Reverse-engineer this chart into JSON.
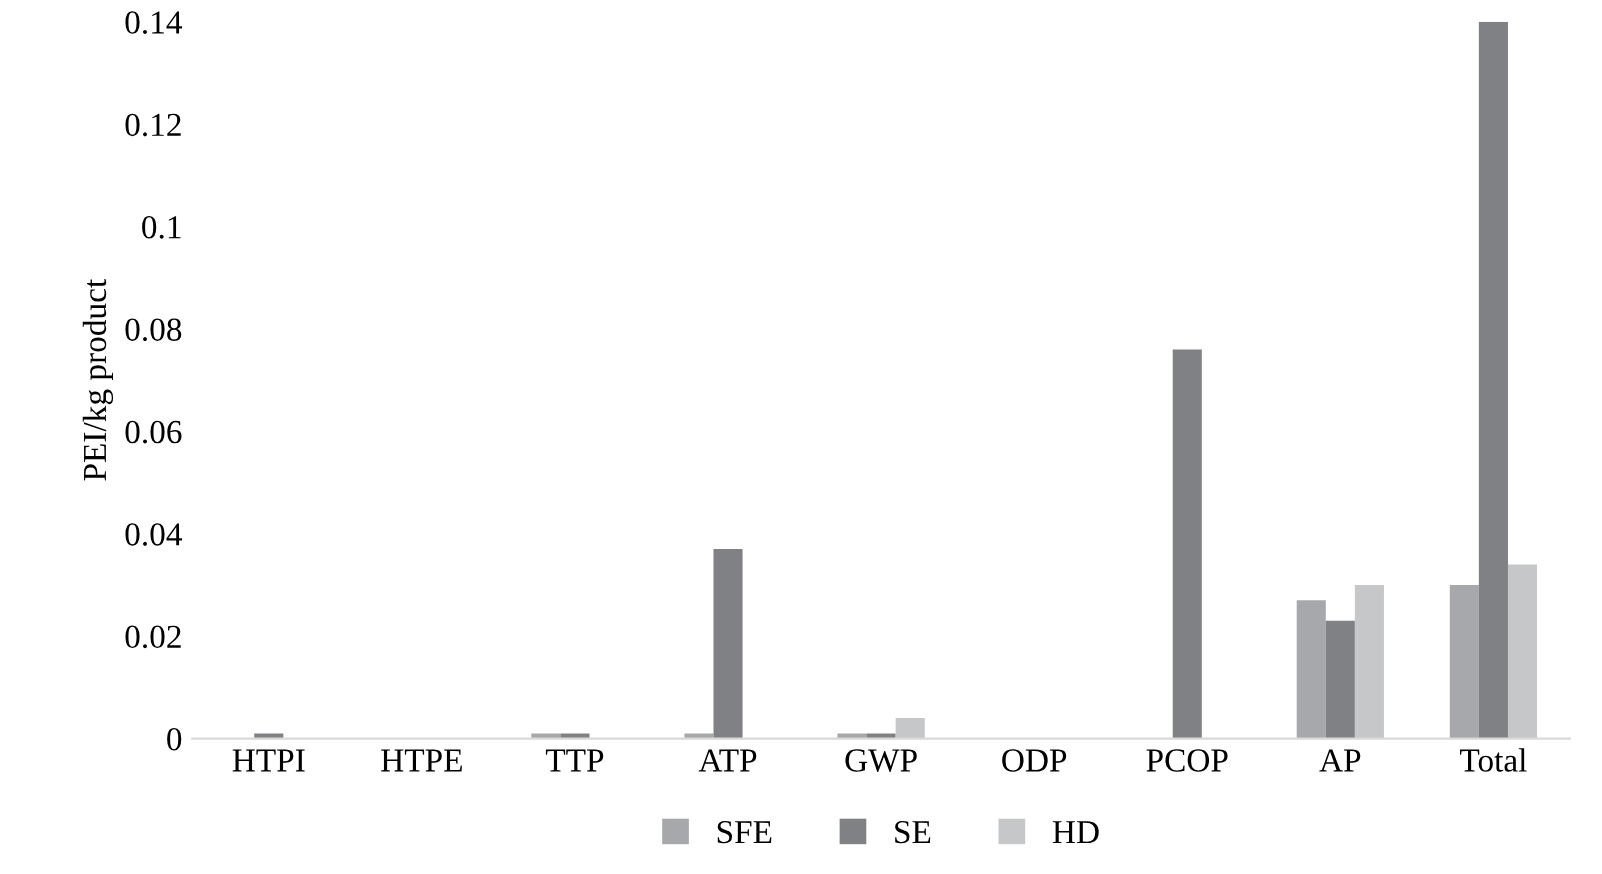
{
  "chart_data": {
    "type": "bar",
    "ylabel": "PEI/kg product",
    "categories": [
      "HTPI",
      "HTPE",
      "TTP",
      "ATP",
      "GWP",
      "ODP",
      "PCOP",
      "AP",
      "Total"
    ],
    "series": [
      {
        "name": "SFE",
        "color": "#a7a8ab",
        "values": [
          0,
          0,
          0.001,
          0.001,
          0.001,
          0,
          0,
          0.027,
          0.03
        ]
      },
      {
        "name": "SE",
        "color": "#808184",
        "values": [
          0.001,
          0,
          0.001,
          0.037,
          0.001,
          0,
          0.076,
          0.023,
          0.14
        ]
      },
      {
        "name": "HD",
        "color": "#c6c7c9",
        "values": [
          0,
          0,
          0,
          0,
          0.004,
          0,
          0,
          0.03,
          0.034
        ]
      }
    ],
    "ylim": [
      0,
      0.14
    ],
    "yticks": [
      0,
      0.02,
      0.04,
      0.06,
      0.08,
      0.1,
      0.12,
      0.14
    ],
    "grid": false,
    "legend": "bottom"
  }
}
